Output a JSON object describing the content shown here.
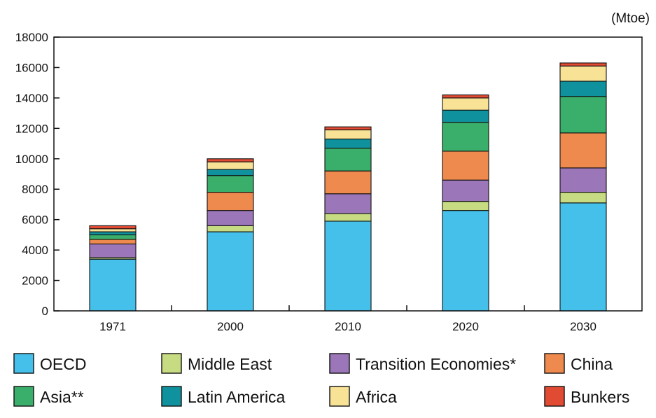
{
  "chart_data": {
    "type": "bar",
    "stacked": true,
    "unit": "(Mtoe)",
    "categories": [
      "1971",
      "2000",
      "2010",
      "2020",
      "2030"
    ],
    "y_ticks": [
      "0",
      "2000",
      "4000",
      "6000",
      "8000",
      "10000",
      "12000",
      "14000",
      "16000",
      "18000"
    ],
    "ylim": [
      0,
      18000
    ],
    "grid": false,
    "legend_position": "bottom",
    "series": [
      {
        "name": "OECD",
        "color": "#45c0ea",
        "values": [
          3400,
          5200,
          5900,
          6600,
          7100
        ]
      },
      {
        "name": "Middle East",
        "color": "#c7dc82",
        "values": [
          100,
          400,
          500,
          600,
          700
        ]
      },
      {
        "name": "Transition Economies*",
        "color": "#9b76b8",
        "values": [
          900,
          1000,
          1300,
          1400,
          1600
        ]
      },
      {
        "name": "China",
        "color": "#ef8a4e",
        "values": [
          300,
          1200,
          1500,
          1900,
          2300
        ]
      },
      {
        "name": "Asia**",
        "color": "#3aaf6b",
        "values": [
          300,
          1100,
          1500,
          1900,
          2400
        ]
      },
      {
        "name": "Latin America",
        "color": "#10929e",
        "values": [
          200,
          400,
          600,
          800,
          1000
        ]
      },
      {
        "name": "Africa",
        "color": "#f8e296",
        "values": [
          200,
          500,
          600,
          800,
          1000
        ]
      },
      {
        "name": "Bunkers",
        "color": "#e24b33",
        "values": [
          200,
          200,
          200,
          200,
          200
        ]
      }
    ]
  }
}
